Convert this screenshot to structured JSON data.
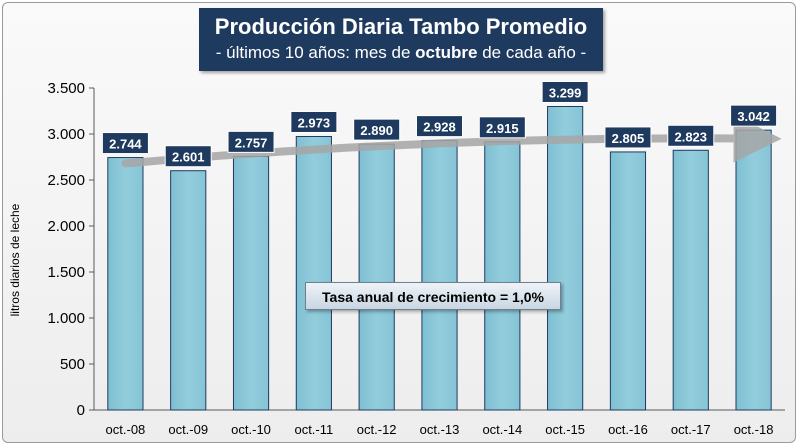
{
  "title": {
    "main": "Producción Diaria Tambo Promedio",
    "sub_pre": "- últimos 10 años: mes de ",
    "sub_bold": "octubre",
    "sub_post": " de cada año -"
  },
  "annotation": "Tasa anual de crecimiento = 1,0%",
  "chart_data": {
    "type": "bar",
    "categories": [
      "oct.-08",
      "oct.-09",
      "oct.-10",
      "oct.-11",
      "oct.-12",
      "oct.-13",
      "oct.-14",
      "oct.-15",
      "oct.-16",
      "oct.-17",
      "oct.-18"
    ],
    "values": [
      2744,
      2601,
      2757,
      2973,
      2890,
      2928,
      2915,
      3299,
      2805,
      2823,
      3042
    ],
    "value_labels": [
      "2.744",
      "2.601",
      "2.757",
      "2.973",
      "2.890",
      "2.928",
      "2.915",
      "3.299",
      "2.805",
      "2.823",
      "3.042"
    ],
    "ylabel": "litros diarios de leche",
    "ylim": [
      0,
      3500
    ],
    "yticks": [
      0,
      500,
      1000,
      1500,
      2000,
      2500,
      3000,
      3500
    ],
    "ytick_labels": [
      "0",
      "500",
      "1.000",
      "1.500",
      "2.000",
      "2.500",
      "3.000",
      "3.500"
    ],
    "grid": false,
    "trend": "curved arrow",
    "colors": {
      "bar_fill": "#92cddc",
      "bar_stroke": "#1f3a5f",
      "label_bg": "#1f3a5f",
      "label_text": "#ffffff",
      "trend": "#a6a6a6"
    }
  }
}
